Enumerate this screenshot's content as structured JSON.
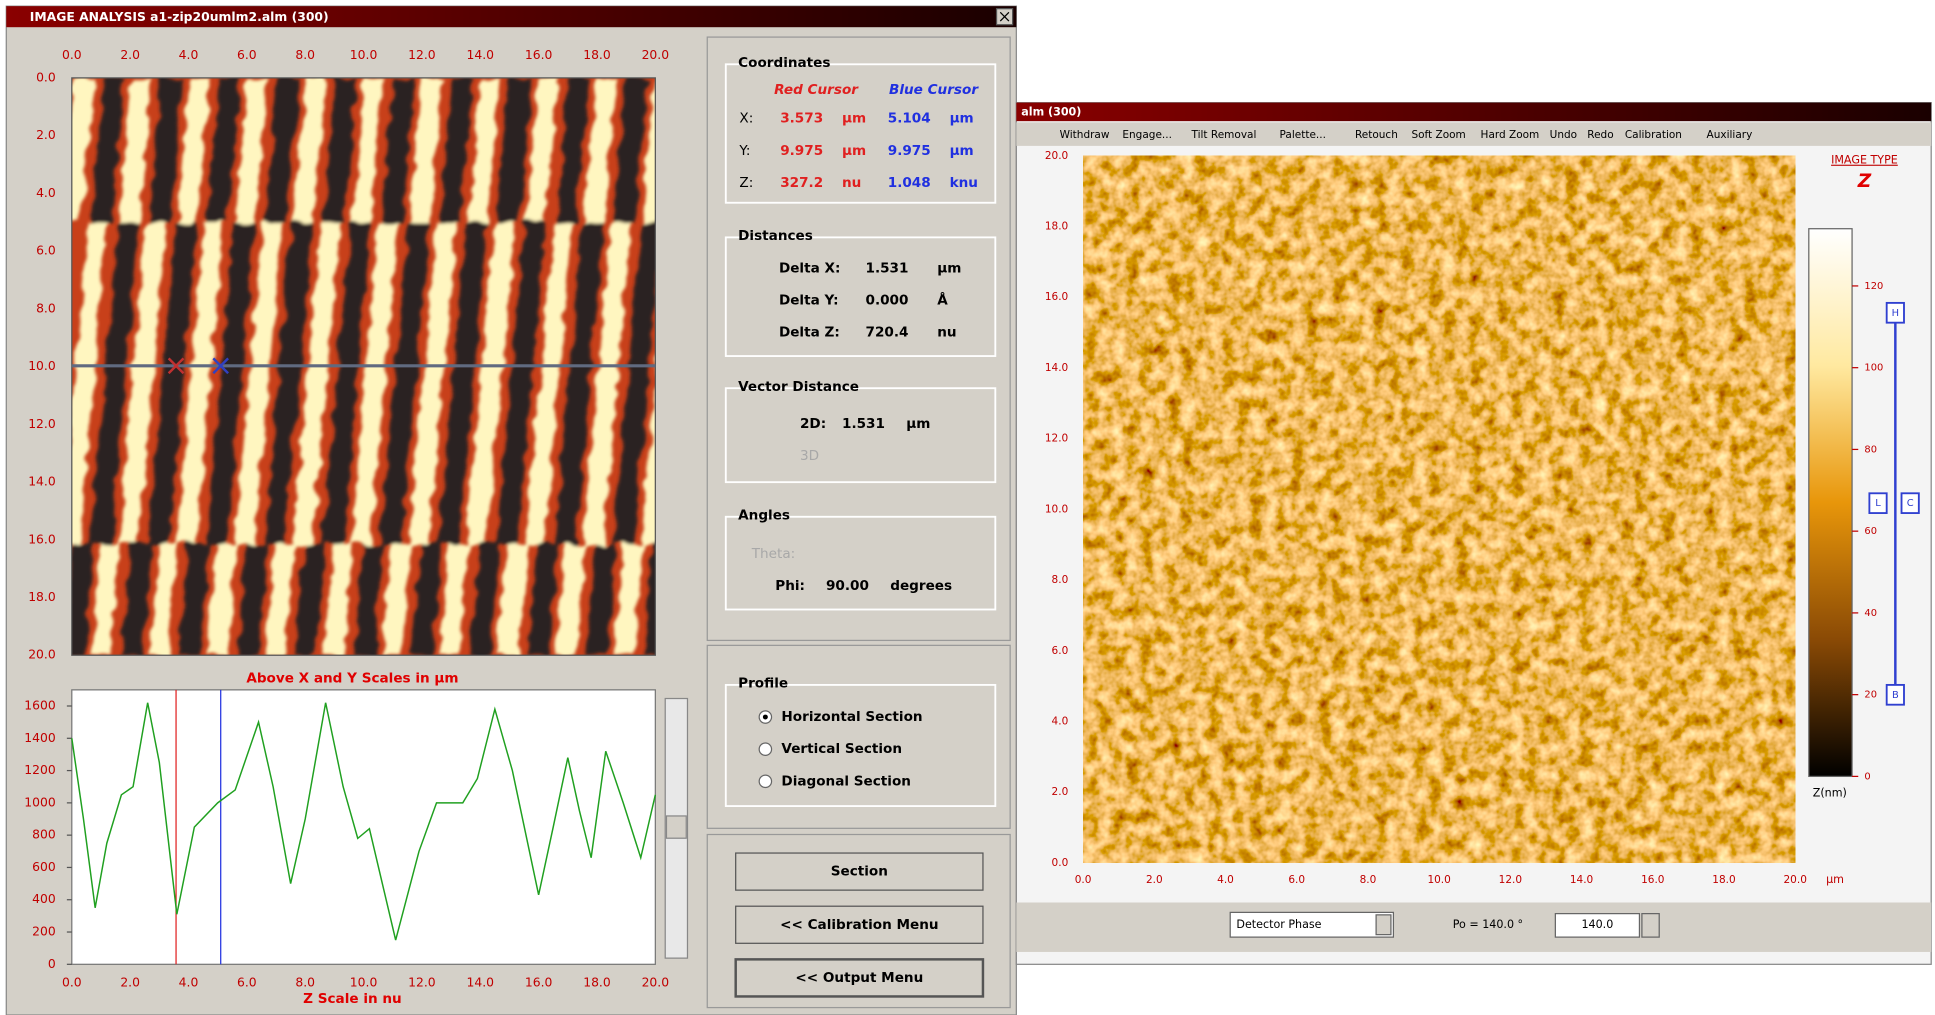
{
  "left_window": {
    "title": "IMAGE ANALYSIS   a1-zip20umlm2.alm   (300)",
    "xlim": [
      0,
      20
    ],
    "ylim": [
      0,
      20
    ],
    "image_axis_labels": [
      "0.0",
      "2.0",
      "4.0",
      "6.0",
      "8.0",
      "10.0",
      "12.0",
      "14.0",
      "16.0",
      "18.0",
      "20.0"
    ],
    "profile": {
      "caption_top": "Above X and Y Scales in µm",
      "caption_bottom": "Z Scale in nu",
      "xlim": [
        0,
        20
      ],
      "ylim": [
        0,
        1700
      ],
      "yticks": [
        0,
        200,
        400,
        600,
        800,
        1000,
        1200,
        1400,
        1600
      ],
      "xtick_labels": [
        "0.0",
        "2.0",
        "4.0",
        "6.0",
        "8.0",
        "10.0",
        "12.0",
        "14.0",
        "16.0",
        "18.0",
        "20.0"
      ],
      "x": [
        0,
        0.4,
        0.8,
        1.2,
        1.7,
        2.1,
        2.6,
        3.0,
        3.6,
        4.2,
        5.0,
        5.6,
        6.4,
        6.9,
        7.5,
        8.0,
        8.7,
        9.3,
        9.8,
        10.2,
        11.1,
        11.9,
        12.5,
        13.4,
        13.9,
        14.5,
        15.1,
        16.0,
        16.5,
        17.0,
        17.4,
        17.8,
        18.3,
        18.9,
        19.5,
        20.0
      ],
      "y": [
        1400,
        900,
        350,
        750,
        1050,
        1100,
        1620,
        1250,
        310,
        850,
        1000,
        1080,
        1500,
        1100,
        500,
        900,
        1620,
        1100,
        780,
        840,
        150,
        700,
        1000,
        1000,
        1150,
        1580,
        1200,
        430,
        850,
        1280,
        950,
        660,
        1320,
        1000,
        660,
        1050
      ]
    },
    "coordinates": {
      "heading": "Coordinates",
      "red_label": "Red Cursor",
      "blue_label": "Blue Cursor",
      "rows": [
        {
          "axis": "X:",
          "red": 3.573,
          "red_unit": "µm",
          "blue": 5.104,
          "blue_unit": "µm"
        },
        {
          "axis": "Y:",
          "red": 9.975,
          "red_unit": "µm",
          "blue": 9.975,
          "blue_unit": "µm"
        },
        {
          "axis": "Z:",
          "red": 327.2,
          "red_unit": "nu",
          "blue": 1.048,
          "blue_unit": "knu"
        }
      ]
    },
    "distances": {
      "heading": "Distances",
      "rows": [
        [
          "Delta X:",
          "1.531",
          "µm"
        ],
        [
          "Delta Y:",
          "0.000",
          "Å"
        ],
        [
          "Delta Z:",
          "720.4",
          "nu"
        ]
      ]
    },
    "vector": {
      "heading": "Vector Distance",
      "row": [
        "2D:",
        "1.531",
        "µm"
      ],
      "disabled": "3D"
    },
    "angles": {
      "heading": "Angles",
      "disabled": "Theta:",
      "row": [
        "Phi:",
        "90.00",
        "degrees"
      ]
    },
    "profile_panel": {
      "heading": "Profile",
      "options": [
        "Horizontal Section",
        "Vertical Section",
        "Diagonal Section"
      ],
      "selected": 0
    },
    "buttons": [
      "Section",
      "<< Calibration Menu",
      "<<     Output Menu"
    ]
  },
  "right_window": {
    "title": "alm  (300)",
    "menu": [
      "Withdraw",
      "Engage...",
      "Tilt Removal",
      "Palette...",
      "Retouch",
      "Soft Zoom",
      "Hard Zoom",
      "Undo",
      "Redo",
      "Calibration",
      "Auxiliary"
    ],
    "image_type_label": "IMAGE TYPE",
    "image_type": "Z",
    "axis_labels": [
      "0.0",
      "2.0",
      "4.0",
      "6.0",
      "8.0",
      "10.0",
      "12.0",
      "14.0",
      "16.0",
      "18.0",
      "20.0"
    ],
    "unit": "µm",
    "colorbar": {
      "label": "Z(nm)",
      "lim": [
        0,
        134
      ],
      "ticks": [
        0,
        20,
        40,
        60,
        80,
        100,
        120
      ],
      "markers": [
        "H",
        "L",
        "C",
        "B"
      ]
    },
    "detector": "Detector Phase",
    "po_label": "Po = 140.0 °",
    "po_value": "140.0"
  }
}
